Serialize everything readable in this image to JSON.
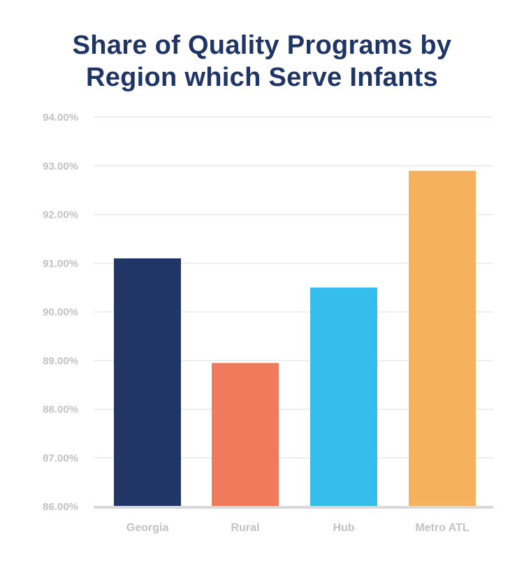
{
  "chart_data": {
    "type": "bar",
    "title_lines": [
      "Share of Quality Programs by",
      "Region which Serve Infants"
    ],
    "categories": [
      "Georgia",
      "Rural",
      "Hub",
      "Metro ATL"
    ],
    "values": [
      91.1,
      88.95,
      90.5,
      92.9
    ],
    "colors": [
      "#213566",
      "#ef7a5c",
      "#35bdec",
      "#f5b15e"
    ],
    "ylim": [
      86,
      94
    ],
    "yticks": [
      86,
      87,
      88,
      89,
      90,
      91,
      92,
      93,
      94
    ],
    "ytick_labels": [
      "86.00%",
      "87.00%",
      "88.00%",
      "89.00%",
      "90.00%",
      "91.00%",
      "92.00%",
      "93.00%",
      "94.00%"
    ],
    "xlabel": "",
    "ylabel": "",
    "grid": true,
    "legend": false
  }
}
